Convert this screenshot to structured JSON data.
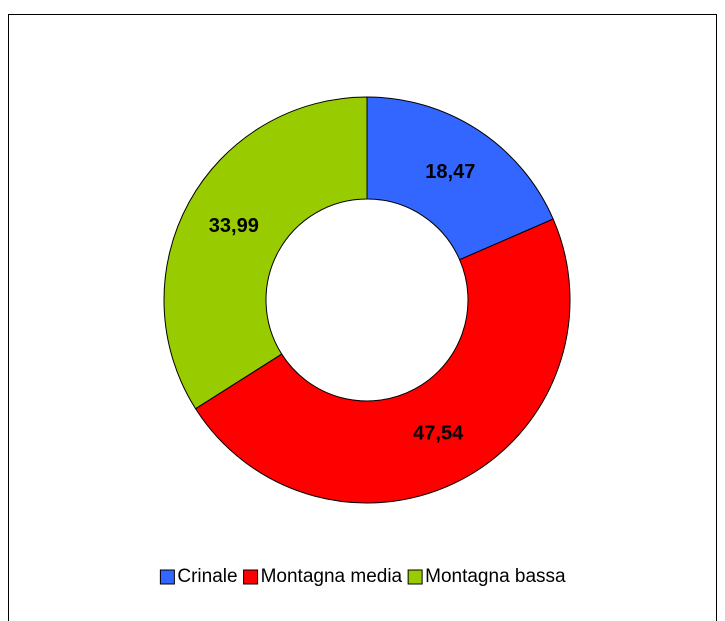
{
  "chart_data": {
    "type": "donut",
    "categories": [
      "Crinale",
      "Montagna media",
      "Montagna bassa"
    ],
    "values": [
      18.47,
      47.54,
      33.99
    ],
    "value_labels": [
      "18,47",
      "47,54",
      "33,99"
    ],
    "colors": [
      "#3366ff",
      "#ff0000",
      "#99cc00"
    ],
    "legend": "bottom"
  }
}
